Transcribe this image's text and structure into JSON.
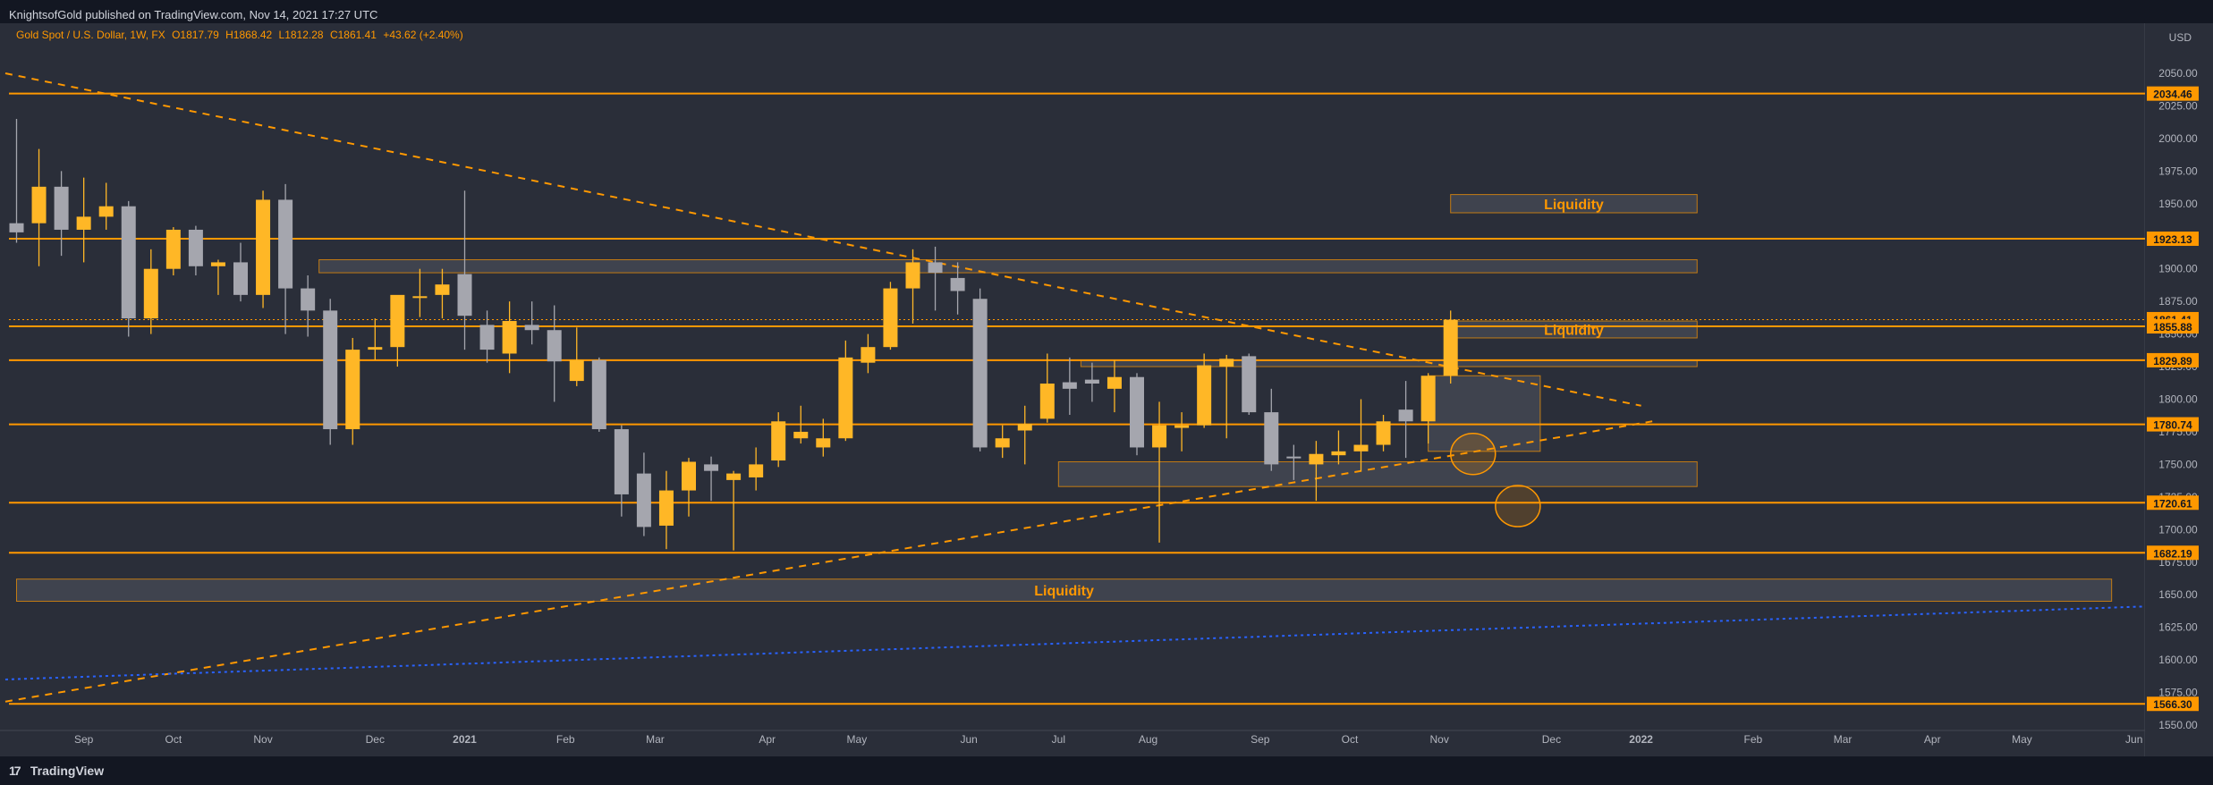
{
  "header": {
    "publisher": "KnightsofGold published on TradingView.com, Nov 14, 2021 17:27 UTC"
  },
  "legend": {
    "symbol": "Gold Spot / U.S. Dollar, 1W, FX",
    "open": "O1817.79",
    "high": "H1868.42",
    "low": "L1812.28",
    "close": "C1861.41",
    "change": "+43.62 (+2.40%)"
  },
  "footer": {
    "brand": "TradingView"
  },
  "colors": {
    "background": "#2a2e39",
    "up": "#ffb726",
    "down": "#a5a6ae",
    "level": "#ff9800",
    "trendline_blue": "#2962ff"
  },
  "chart_data": {
    "type": "candlestick",
    "timeframe": "1W",
    "currency_label": "USD",
    "y_range": [
      1550,
      2065
    ],
    "y_ticks": [
      1550,
      1575,
      1600,
      1625,
      1650,
      1675,
      1700,
      1725,
      1750,
      1775,
      1800,
      1825,
      1850,
      1875,
      1900,
      1925,
      1950,
      1975,
      2000,
      2025,
      2050
    ],
    "x_labels": [
      {
        "label": "Sep",
        "bar": 3,
        "bold": false
      },
      {
        "label": "Oct",
        "bar": 7,
        "bold": false
      },
      {
        "label": "Nov",
        "bar": 11,
        "bold": false
      },
      {
        "label": "Dec",
        "bar": 16,
        "bold": false
      },
      {
        "label": "2021",
        "bar": 20,
        "bold": true
      },
      {
        "label": "Feb",
        "bar": 24.5,
        "bold": false
      },
      {
        "label": "Mar",
        "bar": 28.5,
        "bold": false
      },
      {
        "label": "Apr",
        "bar": 33.5,
        "bold": false
      },
      {
        "label": "May",
        "bar": 37.5,
        "bold": false
      },
      {
        "label": "Jun",
        "bar": 42.5,
        "bold": false
      },
      {
        "label": "Jul",
        "bar": 46.5,
        "bold": false
      },
      {
        "label": "Aug",
        "bar": 50.5,
        "bold": false
      },
      {
        "label": "Sep",
        "bar": 55.5,
        "bold": false
      },
      {
        "label": "Oct",
        "bar": 59.5,
        "bold": false
      },
      {
        "label": "Nov",
        "bar": 63.5,
        "bold": false
      },
      {
        "label": "Dec",
        "bar": 68.5,
        "bold": false
      },
      {
        "label": "2022",
        "bar": 72.5,
        "bold": true
      },
      {
        "label": "Feb",
        "bar": 77.5,
        "bold": false
      },
      {
        "label": "Mar",
        "bar": 81.5,
        "bold": false
      },
      {
        "label": "Apr",
        "bar": 85.5,
        "bold": false
      },
      {
        "label": "May",
        "bar": 89.5,
        "bold": false
      },
      {
        "label": "Jun",
        "bar": 94.5,
        "bold": false
      }
    ],
    "candles": [
      {
        "o": 1935,
        "h": 2015,
        "l": 1920,
        "c": 1928
      },
      {
        "o": 1935,
        "h": 1992,
        "l": 1902,
        "c": 1963
      },
      {
        "o": 1963,
        "h": 1975,
        "l": 1910,
        "c": 1930
      },
      {
        "o": 1930,
        "h": 1970,
        "l": 1905,
        "c": 1940
      },
      {
        "o": 1940,
        "h": 1966,
        "l": 1930,
        "c": 1948
      },
      {
        "o": 1948,
        "h": 1952,
        "l": 1848,
        "c": 1862
      },
      {
        "o": 1862,
        "h": 1915,
        "l": 1850,
        "c": 1900
      },
      {
        "o": 1900,
        "h": 1932,
        "l": 1895,
        "c": 1930
      },
      {
        "o": 1930,
        "h": 1933,
        "l": 1895,
        "c": 1902
      },
      {
        "o": 1902,
        "h": 1907,
        "l": 1880,
        "c": 1905
      },
      {
        "o": 1905,
        "h": 1920,
        "l": 1875,
        "c": 1880
      },
      {
        "o": 1880,
        "h": 1960,
        "l": 1870,
        "c": 1953
      },
      {
        "o": 1953,
        "h": 1965,
        "l": 1850,
        "c": 1885
      },
      {
        "o": 1885,
        "h": 1895,
        "l": 1848,
        "c": 1868
      },
      {
        "o": 1868,
        "h": 1877,
        "l": 1765,
        "c": 1777
      },
      {
        "o": 1777,
        "h": 1847,
        "l": 1765,
        "c": 1838
      },
      {
        "o": 1838,
        "h": 1862,
        "l": 1830,
        "c": 1840
      },
      {
        "o": 1840,
        "h": 1876,
        "l": 1825,
        "c": 1880
      },
      {
        "o": 1878,
        "h": 1900,
        "l": 1863,
        "c": 1879
      },
      {
        "o": 1880,
        "h": 1900,
        "l": 1862,
        "c": 1888
      },
      {
        "o": 1896,
        "h": 1960,
        "l": 1838,
        "c": 1864
      },
      {
        "o": 1857,
        "h": 1868,
        "l": 1828,
        "c": 1838
      },
      {
        "o": 1835,
        "h": 1875,
        "l": 1820,
        "c": 1860
      },
      {
        "o": 1857,
        "h": 1875,
        "l": 1842,
        "c": 1853
      },
      {
        "o": 1853,
        "h": 1872,
        "l": 1798,
        "c": 1829
      },
      {
        "o": 1814,
        "h": 1855,
        "l": 1810,
        "c": 1830
      },
      {
        "o": 1830,
        "h": 1832,
        "l": 1775,
        "c": 1777
      },
      {
        "o": 1777,
        "h": 1780,
        "l": 1710,
        "c": 1727
      },
      {
        "o": 1743,
        "h": 1759,
        "l": 1695,
        "c": 1702
      },
      {
        "o": 1703,
        "h": 1745,
        "l": 1685,
        "c": 1730
      },
      {
        "o": 1730,
        "h": 1755,
        "l": 1710,
        "c": 1752
      },
      {
        "o": 1750,
        "h": 1756,
        "l": 1722,
        "c": 1745
      },
      {
        "o": 1738,
        "h": 1745,
        "l": 1684,
        "c": 1743
      },
      {
        "o": 1740,
        "h": 1763,
        "l": 1730,
        "c": 1750
      },
      {
        "o": 1753,
        "h": 1790,
        "l": 1748,
        "c": 1783
      },
      {
        "o": 1770,
        "h": 1795,
        "l": 1766,
        "c": 1775
      },
      {
        "o": 1763,
        "h": 1785,
        "l": 1756,
        "c": 1770
      },
      {
        "o": 1770,
        "h": 1845,
        "l": 1768,
        "c": 1832
      },
      {
        "o": 1828,
        "h": 1850,
        "l": 1820,
        "c": 1840
      },
      {
        "o": 1840,
        "h": 1890,
        "l": 1838,
        "c": 1885
      },
      {
        "o": 1885,
        "h": 1915,
        "l": 1858,
        "c": 1905
      },
      {
        "o": 1905,
        "h": 1917,
        "l": 1868,
        "c": 1897
      },
      {
        "o": 1893,
        "h": 1905,
        "l": 1865,
        "c": 1883
      },
      {
        "o": 1877,
        "h": 1885,
        "l": 1760,
        "c": 1763
      },
      {
        "o": 1763,
        "h": 1780,
        "l": 1755,
        "c": 1770
      },
      {
        "o": 1776,
        "h": 1795,
        "l": 1750,
        "c": 1781
      },
      {
        "o": 1785,
        "h": 1835,
        "l": 1782,
        "c": 1812
      },
      {
        "o": 1813,
        "h": 1832,
        "l": 1788,
        "c": 1808
      },
      {
        "o": 1815,
        "h": 1828,
        "l": 1798,
        "c": 1812
      },
      {
        "o": 1808,
        "h": 1830,
        "l": 1790,
        "c": 1817
      },
      {
        "o": 1817,
        "h": 1820,
        "l": 1757,
        "c": 1763
      },
      {
        "o": 1763,
        "h": 1798,
        "l": 1690,
        "c": 1780
      },
      {
        "o": 1778,
        "h": 1790,
        "l": 1760,
        "c": 1780
      },
      {
        "o": 1780,
        "h": 1835,
        "l": 1778,
        "c": 1826
      },
      {
        "o": 1825,
        "h": 1834,
        "l": 1770,
        "c": 1831
      },
      {
        "o": 1833,
        "h": 1835,
        "l": 1788,
        "c": 1790
      },
      {
        "o": 1790,
        "h": 1808,
        "l": 1745,
        "c": 1750
      },
      {
        "o": 1756,
        "h": 1765,
        "l": 1738,
        "c": 1755
      },
      {
        "o": 1750,
        "h": 1768,
        "l": 1722,
        "c": 1758
      },
      {
        "o": 1757,
        "h": 1776,
        "l": 1750,
        "c": 1760
      },
      {
        "o": 1760,
        "h": 1800,
        "l": 1745,
        "c": 1765
      },
      {
        "o": 1765,
        "h": 1788,
        "l": 1760,
        "c": 1783
      },
      {
        "o": 1792,
        "h": 1814,
        "l": 1755,
        "c": 1783
      },
      {
        "o": 1783,
        "h": 1820,
        "l": 1766,
        "c": 1818
      },
      {
        "o": 1818,
        "h": 1868,
        "l": 1812,
        "c": 1861
      }
    ],
    "horizontal_levels": [
      2034.46,
      1923.13,
      1855.88,
      1829.89,
      1780.74,
      1720.61,
      1682.19,
      1566.3
    ],
    "price_labels": [
      {
        "value": 2034.46,
        "text": "2034.46"
      },
      {
        "value": 1923.13,
        "text": "1923.13"
      },
      {
        "value": 1861.41,
        "text": "1861.41"
      },
      {
        "value": 1855.88,
        "text": "1855.88"
      },
      {
        "value": 1829.89,
        "text": "1829.89"
      },
      {
        "value": 1780.74,
        "text": "1780.74"
      },
      {
        "value": 1720.61,
        "text": "1720.61"
      },
      {
        "value": 1682.19,
        "text": "1682.19"
      },
      {
        "value": 1566.3,
        "text": "1566.30"
      }
    ],
    "zones": [
      {
        "label": "Liquidity",
        "x0": 64,
        "x1": 75,
        "y0": 1943,
        "y1": 1957
      },
      {
        "label": "",
        "x0": 13.5,
        "x1": 75,
        "y0": 1897,
        "y1": 1907
      },
      {
        "label": "Liquidity",
        "x0": 64,
        "x1": 75,
        "y0": 1847,
        "y1": 1860
      },
      {
        "label": "",
        "x0": 47.5,
        "x1": 75,
        "y0": 1825,
        "y1": 1830
      },
      {
        "label": "",
        "x0": 46.5,
        "x1": 75,
        "y0": 1733,
        "y1": 1752
      },
      {
        "label": "",
        "x0": 63,
        "x1": 68,
        "y0": 1760,
        "y1": 1818
      },
      {
        "label": "Liquidity",
        "x0": 0,
        "x1": 93.5,
        "y0": 1645,
        "y1": 1662
      }
    ],
    "circles": [
      {
        "bar": 65,
        "value": 1758
      },
      {
        "bar": 67,
        "value": 1718
      }
    ],
    "trendlines": [
      {
        "style": "dashed",
        "color": "orange",
        "x0": -0.5,
        "y0": 2050,
        "x1": 72.5,
        "y1": 1795
      },
      {
        "style": "dashed",
        "color": "orange",
        "x0": -0.5,
        "y0": 1568,
        "x1": 73,
        "y1": 1783
      },
      {
        "style": "dotted",
        "color": "blue",
        "x0": -0.5,
        "y0": 1585,
        "x1": 98,
        "y1": 1641
      }
    ]
  }
}
